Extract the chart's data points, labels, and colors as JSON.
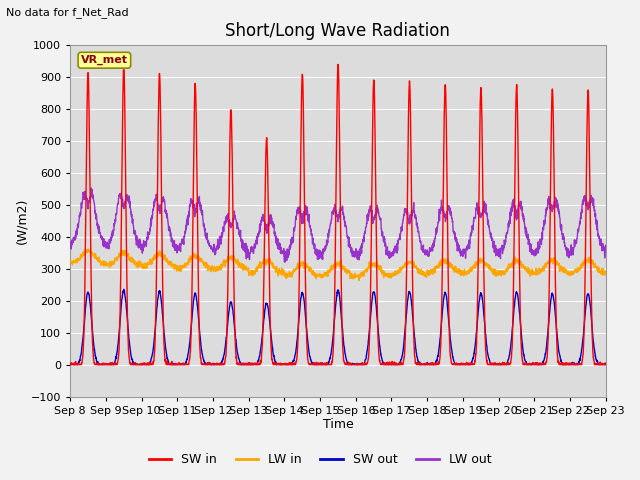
{
  "title": "Short/Long Wave Radiation",
  "top_left_text": "No data for f_Net_Rad",
  "legend_label_text": "VR_met",
  "xlabel": "Time",
  "ylabel": "(W/m2)",
  "ylim": [
    -100,
    1000
  ],
  "yticks": [
    -100,
    0,
    100,
    200,
    300,
    400,
    500,
    600,
    700,
    800,
    900,
    1000
  ],
  "x_tick_labels": [
    "Sep 8",
    "Sep 9",
    "Sep 10",
    "Sep 11",
    "Sep 12",
    "Sep 13",
    "Sep 14",
    "Sep 15",
    "Sep 16",
    "Sep 17",
    "Sep 18",
    "Sep 19",
    "Sep 20",
    "Sep 21",
    "Sep 22",
    "Sep 23"
  ],
  "num_days": 15,
  "points_per_day": 144,
  "sw_in_peaks": [
    910,
    925,
    908,
    878,
    800,
    708,
    910,
    940,
    892,
    884,
    878,
    866,
    870,
    862,
    855
  ],
  "sw_out_peaks": [
    225,
    232,
    228,
    222,
    195,
    192,
    225,
    232,
    228,
    228,
    225,
    222,
    225,
    222,
    222
  ],
  "sw_in_color": "#FF0000",
  "lw_in_color": "#FFA500",
  "sw_out_color": "#0000CC",
  "lw_out_color": "#9932CC",
  "background_color": "#E8E8E8",
  "plot_bg_color": "#DCDCDC",
  "grid_color": "#FFFFFF",
  "legend_box_color": "#FFFF99",
  "legend_box_edge": "#8B8B00",
  "title_fontsize": 12,
  "axis_label_fontsize": 9,
  "tick_fontsize": 8
}
